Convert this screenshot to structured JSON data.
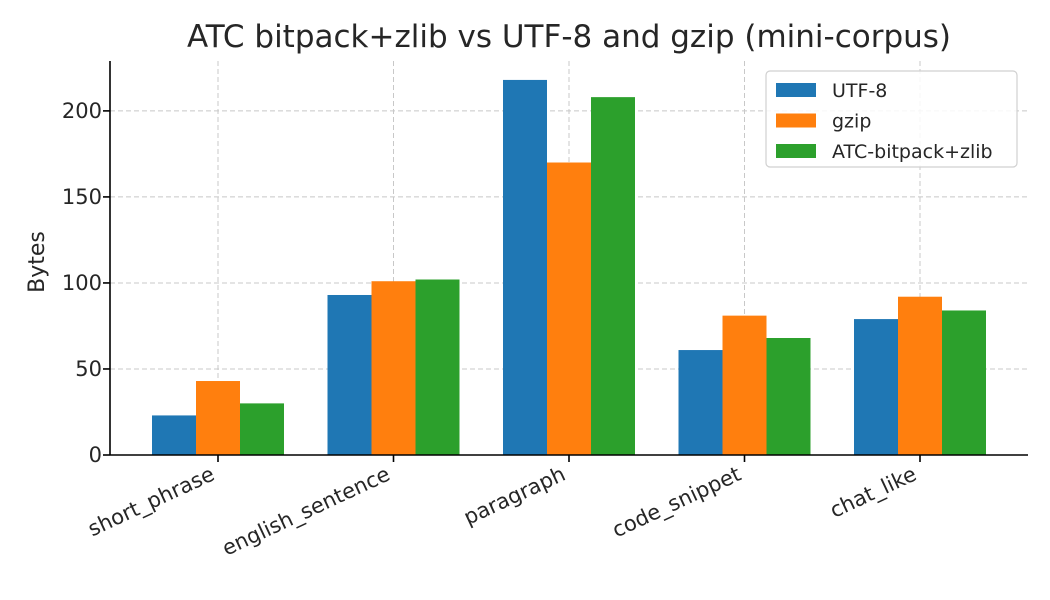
{
  "chart_data": {
    "type": "bar",
    "title": "ATC bitpack+zlib vs UTF-8 and gzip (mini-corpus)",
    "xlabel": "",
    "ylabel": "Bytes",
    "categories": [
      "short_phrase",
      "english_sentence",
      "paragraph",
      "code_snippet",
      "chat_like"
    ],
    "series": [
      {
        "name": "UTF-8",
        "color": "#1f77b4",
        "values": [
          23,
          93,
          218,
          61,
          79
        ]
      },
      {
        "name": "gzip",
        "color": "#ff7f0e",
        "values": [
          43,
          101,
          170,
          81,
          92
        ]
      },
      {
        "name": "ATC-bitpack+zlib",
        "color": "#2ca02c",
        "values": [
          30,
          102,
          208,
          68,
          84
        ]
      }
    ],
    "ylim": [
      0,
      229
    ],
    "yticks": [
      0,
      50,
      100,
      150,
      200
    ],
    "grid": true,
    "legend_position": "top-right"
  }
}
